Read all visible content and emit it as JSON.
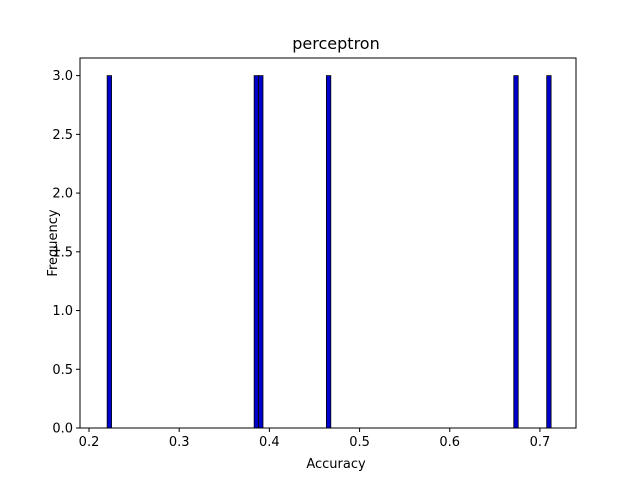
{
  "chart_data": {
    "type": "bar",
    "title": "perceptron",
    "xlabel": "Accuracy",
    "ylabel": "Frequency",
    "xlim": [
      0.19,
      0.74
    ],
    "ylim": [
      0,
      3.15
    ],
    "x_ticks": [
      "0.2",
      "0.3",
      "0.4",
      "0.5",
      "0.6",
      "0.7"
    ],
    "y_ticks": [
      "0.0",
      "0.5",
      "1.0",
      "1.5",
      "2.0",
      "2.5",
      "3.0"
    ],
    "grid": false,
    "bin_width": 0.0049,
    "bins": [
      {
        "x_start": 0.2201,
        "x_end": 0.225,
        "count": 3
      },
      {
        "x_start": 0.3831,
        "x_end": 0.388,
        "count": 3
      },
      {
        "x_start": 0.388,
        "x_end": 0.3929,
        "count": 3
      },
      {
        "x_start": 0.4632,
        "x_end": 0.4681,
        "count": 3
      },
      {
        "x_start": 0.671,
        "x_end": 0.6759,
        "count": 3
      },
      {
        "x_start": 0.7075,
        "x_end": 0.7124,
        "count": 3
      }
    ],
    "bar_color": "#0000cc",
    "edge_color": "#000000"
  }
}
